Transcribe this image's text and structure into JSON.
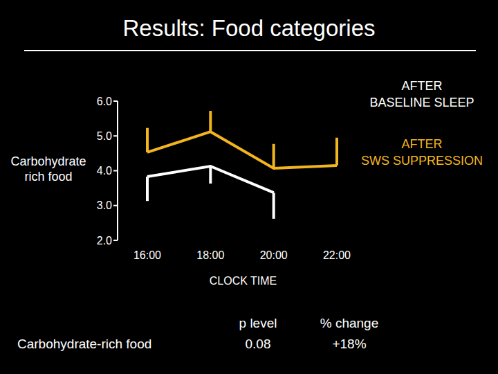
{
  "chart_data": {
    "type": "line",
    "title": "Results: Food categories",
    "categories": [
      "16:00",
      "18:00",
      "20:00",
      "22:00"
    ],
    "y_label": "Carbohydrate rich food",
    "x_label": "CLOCK TIME",
    "ylim": [
      2,
      6
    ],
    "yticks": [
      {
        "value": 2,
        "label": "2.0"
      },
      {
        "value": 3,
        "label": "3.0"
      },
      {
        "value": 4,
        "label": "4.0"
      },
      {
        "value": 5,
        "label": "5.0"
      },
      {
        "value": 6,
        "label": "6.0"
      }
    ],
    "grid": false,
    "legend": "right",
    "series": [
      {
        "name": "AFTER BASELINE SLEEP",
        "color": "#ffffff",
        "values": [
          3.83,
          4.13,
          3.37,
          null
        ],
        "error_minus": [
          0.7,
          0.5,
          0.75,
          null
        ],
        "error_plus": [
          0,
          0,
          0,
          null
        ]
      },
      {
        "name": "AFTER SWS SUPPRESSION",
        "color": "#f2b51f",
        "values": [
          4.53,
          5.12,
          4.07,
          4.15
        ],
        "error_minus": [
          0,
          0,
          0,
          0
        ],
        "error_plus": [
          0.7,
          0.6,
          0.7,
          0.8
        ]
      }
    ]
  },
  "table": {
    "columns": [
      "p level",
      "% change"
    ],
    "rows": [
      {
        "label": "Carbohydrate-rich food",
        "cells": [
          "0.08",
          "+18%"
        ]
      }
    ]
  }
}
